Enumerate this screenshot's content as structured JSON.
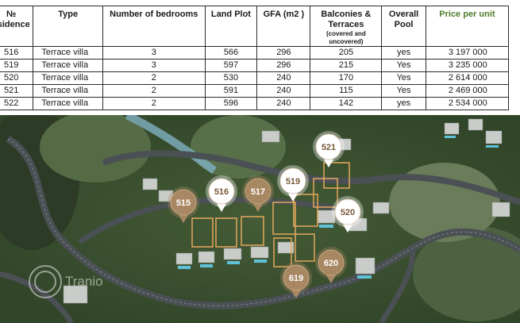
{
  "table": {
    "headers": [
      {
        "line1": "№",
        "line2": "esidence",
        "sub": ""
      },
      {
        "line1": "Type",
        "line2": "",
        "sub": ""
      },
      {
        "line1": "Number of bedrooms",
        "line2": "",
        "sub": ""
      },
      {
        "line1": "Land Plot",
        "line2": "",
        "sub": ""
      },
      {
        "line1": "GFA (m2 )",
        "line2": "",
        "sub": ""
      },
      {
        "line1": "Balconies &",
        "line2": "Terraces",
        "sub": "(covered and uncovered)"
      },
      {
        "line1": "Overall",
        "line2": "Pool",
        "sub": ""
      },
      {
        "line1": "Price per unit",
        "line2": "",
        "sub": ""
      }
    ],
    "rows": [
      {
        "residence": "516",
        "type": "Terrace villa",
        "bedrooms": "3",
        "land_plot": "566",
        "gfa": "296",
        "balconies": "205",
        "pool": "yes",
        "price": "3 197 000"
      },
      {
        "residence": "519",
        "type": "Terrace villa",
        "bedrooms": "3",
        "land_plot": "597",
        "gfa": "296",
        "balconies": "215",
        "pool": "Yes",
        "price": "3 235 000"
      },
      {
        "residence": "520",
        "type": "Terrace villa",
        "bedrooms": "2",
        "land_plot": "530",
        "gfa": "240",
        "balconies": "170",
        "pool": "Yes",
        "price": "2 614 000"
      },
      {
        "residence": "521",
        "type": "Terrace villa",
        "bedrooms": "2",
        "land_plot": "591",
        "gfa": "240",
        "balconies": "115",
        "pool": "Yes",
        "price": "2 469 000"
      },
      {
        "residence": "522",
        "type": "Terrace villa",
        "bedrooms": "2",
        "land_plot": "596",
        "gfa": "240",
        "balconies": "142",
        "pool": "yes",
        "price": "2 534 000"
      }
    ]
  },
  "map": {
    "pins": [
      {
        "label": "515",
        "style": "tan"
      },
      {
        "label": "516",
        "style": "white"
      },
      {
        "label": "517",
        "style": "tan"
      },
      {
        "label": "519",
        "style": "white"
      },
      {
        "label": "520",
        "style": "white"
      },
      {
        "label": "521",
        "style": "white"
      },
      {
        "label": "619",
        "style": "tan"
      },
      {
        "label": "620",
        "style": "tan"
      }
    ],
    "watermark": "Tranio",
    "colors": {
      "tan_pin": "#a88763",
      "white_pin": "#ffffff",
      "plot_outline": "#e6a75c",
      "road": "#4a5054",
      "vegetation": "#3f5a36"
    }
  }
}
